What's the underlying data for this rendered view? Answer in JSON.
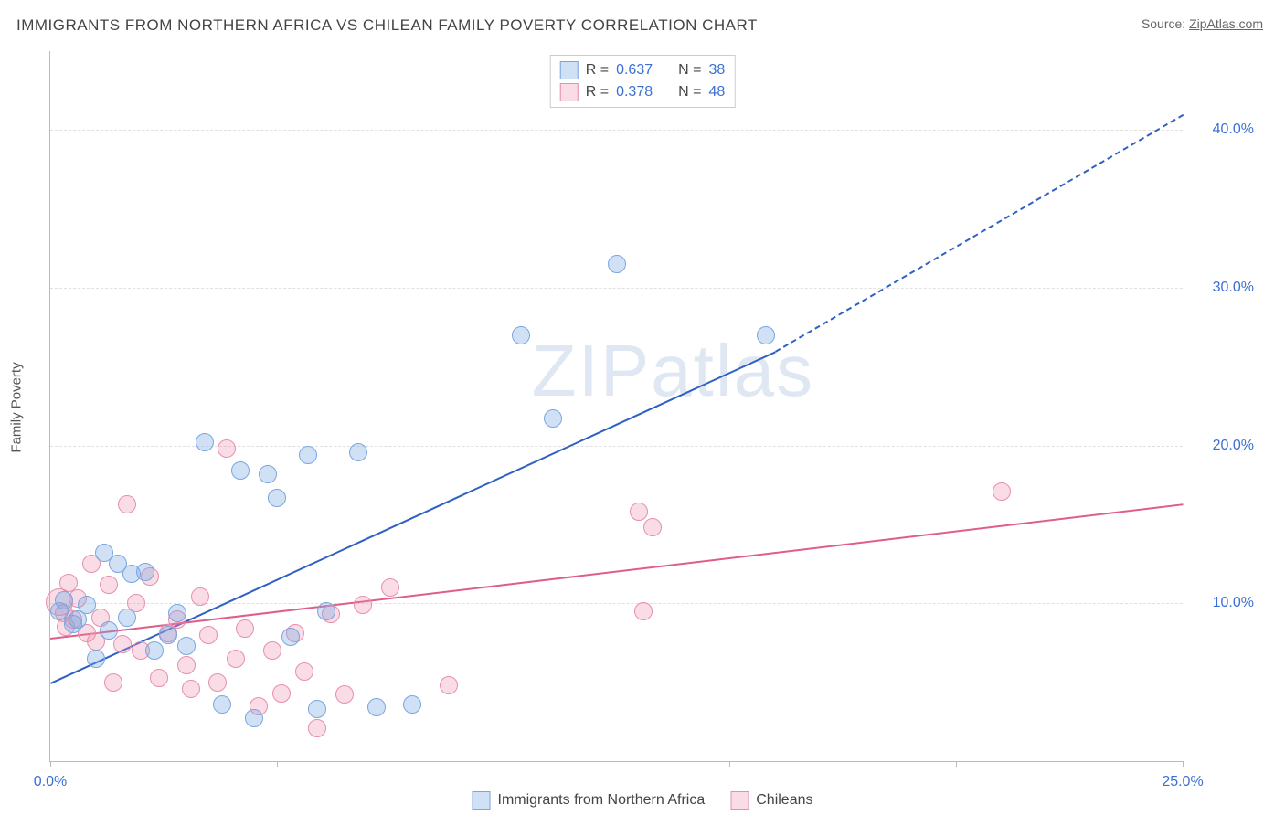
{
  "title": "IMMIGRANTS FROM NORTHERN AFRICA VS CHILEAN FAMILY POVERTY CORRELATION CHART",
  "source_label": "Source:",
  "source_name": "ZipAtlas.com",
  "watermark": "ZIPatlas",
  "chart": {
    "type": "scatter",
    "y_label": "Family Poverty",
    "xlim": [
      0,
      25
    ],
    "ylim": [
      0,
      45
    ],
    "x_ticks": [
      0,
      5,
      10,
      15,
      20,
      25
    ],
    "x_tick_labels": [
      "0.0%",
      "",
      "",
      "",
      "",
      "25.0%"
    ],
    "y_ticks": [
      10,
      20,
      30,
      40
    ],
    "y_tick_labels": [
      "10.0%",
      "20.0%",
      "30.0%",
      "40.0%"
    ],
    "background_color": "#ffffff",
    "grid_color": "#e0e0e0",
    "axis_color": "#bbbbbb",
    "tick_label_color": "#3b6fd6",
    "tick_label_fontsize": 16,
    "title_color": "#444444",
    "title_fontsize": 17,
    "marker_radius_default": 9,
    "marker_radius_large": 14,
    "series": [
      {
        "name": "Immigrants from Northern Africa",
        "color_fill": "rgba(120,165,225,0.35)",
        "color_stroke": "#7ba6e0",
        "marker_class": "blue",
        "r": 0.637,
        "n": 38,
        "trend": {
          "x1": 0,
          "y1": 5.0,
          "x2": 16.0,
          "y2": 26.0,
          "x2_dash": 25.0,
          "y2_dash": 41.0,
          "color": "#2f60c4",
          "width": 2
        },
        "points": [
          [
            0.2,
            9.5
          ],
          [
            0.3,
            10.2
          ],
          [
            0.5,
            8.7
          ],
          [
            0.6,
            9.0
          ],
          [
            0.8,
            9.9
          ],
          [
            1.0,
            6.5
          ],
          [
            1.2,
            13.2
          ],
          [
            1.3,
            8.3
          ],
          [
            1.5,
            12.5
          ],
          [
            1.7,
            9.1
          ],
          [
            1.8,
            11.9
          ],
          [
            2.1,
            12.0
          ],
          [
            2.3,
            7.0
          ],
          [
            2.6,
            8.0
          ],
          [
            2.8,
            9.4
          ],
          [
            3.0,
            7.3
          ],
          [
            3.4,
            20.2
          ],
          [
            3.8,
            3.6
          ],
          [
            4.2,
            18.4
          ],
          [
            4.5,
            2.7
          ],
          [
            4.8,
            18.2
          ],
          [
            5.0,
            16.7
          ],
          [
            5.3,
            7.9
          ],
          [
            5.7,
            19.4
          ],
          [
            5.9,
            3.3
          ],
          [
            6.1,
            9.5
          ],
          [
            6.8,
            19.6
          ],
          [
            7.2,
            3.4
          ],
          [
            8.0,
            3.6
          ],
          [
            10.4,
            27.0
          ],
          [
            11.1,
            21.7
          ],
          [
            12.5,
            31.5
          ],
          [
            15.8,
            27.0
          ]
        ]
      },
      {
        "name": "Chileans",
        "color_fill": "rgba(235,140,170,0.30)",
        "color_stroke": "#e88fab",
        "marker_class": "pink",
        "r": 0.378,
        "n": 48,
        "trend": {
          "x1": 0,
          "y1": 7.8,
          "x2": 25.0,
          "y2": 16.3,
          "color": "#e05d87",
          "width": 2
        },
        "points": [
          [
            0.2,
            10.1,
            14
          ],
          [
            0.3,
            9.4
          ],
          [
            0.35,
            8.5
          ],
          [
            0.4,
            11.3
          ],
          [
            0.5,
            9.0
          ],
          [
            0.6,
            10.3
          ],
          [
            0.8,
            8.1
          ],
          [
            0.9,
            12.5
          ],
          [
            1.0,
            7.6
          ],
          [
            1.1,
            9.1
          ],
          [
            1.3,
            11.2
          ],
          [
            1.4,
            5.0
          ],
          [
            1.6,
            7.4
          ],
          [
            1.7,
            16.3
          ],
          [
            1.9,
            10.0
          ],
          [
            2.0,
            7.0
          ],
          [
            2.2,
            11.7
          ],
          [
            2.4,
            5.3
          ],
          [
            2.6,
            8.1
          ],
          [
            2.8,
            9.0
          ],
          [
            3.0,
            6.1
          ],
          [
            3.1,
            4.6
          ],
          [
            3.3,
            10.4
          ],
          [
            3.5,
            8.0
          ],
          [
            3.7,
            5.0
          ],
          [
            3.9,
            19.8
          ],
          [
            4.1,
            6.5
          ],
          [
            4.3,
            8.4
          ],
          [
            4.6,
            3.5
          ],
          [
            4.9,
            7.0
          ],
          [
            5.1,
            4.3
          ],
          [
            5.4,
            8.1
          ],
          [
            5.6,
            5.7
          ],
          [
            5.9,
            2.1
          ],
          [
            6.2,
            9.3
          ],
          [
            6.5,
            4.2
          ],
          [
            6.9,
            9.9
          ],
          [
            7.5,
            11.0
          ],
          [
            8.8,
            4.8
          ],
          [
            13.0,
            15.8
          ],
          [
            13.3,
            14.8
          ],
          [
            13.1,
            9.5
          ],
          [
            21.0,
            17.1
          ]
        ]
      }
    ]
  },
  "legend_top": [
    {
      "swatch": "blue",
      "r_label": "R =",
      "r_value": "0.637",
      "n_label": "N =",
      "n_value": "38"
    },
    {
      "swatch": "pink",
      "r_label": "R =",
      "r_value": "0.378",
      "n_label": "N =",
      "n_value": "48"
    }
  ],
  "legend_bottom": [
    {
      "swatch": "blue",
      "label": "Immigrants from Northern Africa"
    },
    {
      "swatch": "pink",
      "label": "Chileans"
    }
  ]
}
